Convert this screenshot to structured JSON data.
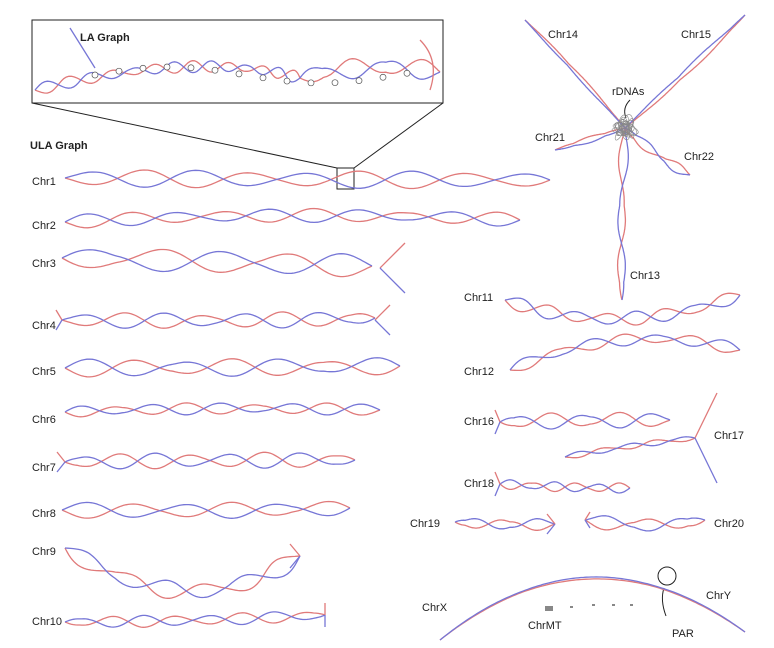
{
  "inset_title": "LA Graph",
  "graph_title": "ULA Graph",
  "chromosomes": [
    "Chr1",
    "Chr2",
    "Chr3",
    "Chr4",
    "Chr5",
    "Chr6",
    "Chr7",
    "Chr8",
    "Chr9",
    "Chr10",
    "Chr11",
    "Chr12",
    "Chr16",
    "Chr17",
    "Chr18",
    "Chr19",
    "Chr20",
    "ChrX",
    "ChrY",
    "ChrMT",
    "Chr14",
    "Chr15",
    "Chr21",
    "Chr22",
    "Chr13"
  ],
  "annotations": {
    "rdnas": "rDNAs",
    "par": "PAR"
  }
}
